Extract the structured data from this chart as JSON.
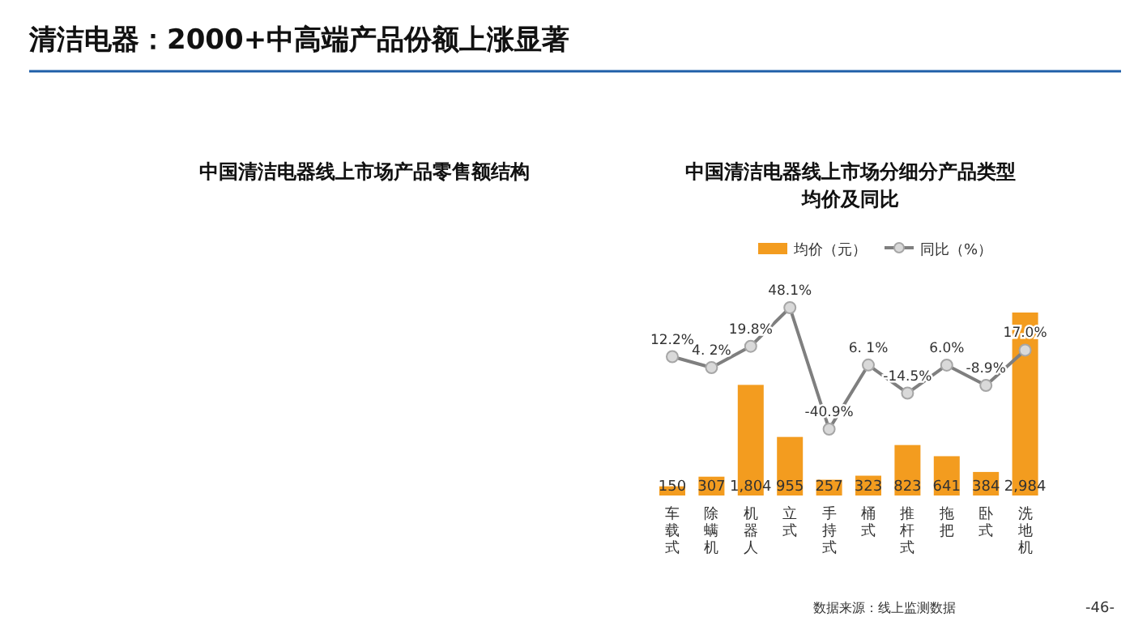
{
  "chart_data": {
    "type": "bar",
    "title": "清洁电器：2000+中高端产品份额上涨显著",
    "subtitle": "中国清洁电器线上市场分细分产品类型均价及同比",
    "categories": [
      "车载式",
      "除螨机",
      "机器人",
      "立式",
      "手持式",
      "桶式",
      "推杆式",
      "拖把",
      "卧式",
      "洗地机"
    ],
    "series": [
      {
        "name": "均价（元）",
        "color": "#f39c1f",
        "values": [
          150,
          307,
          1804,
          955,
          257,
          323,
          823,
          641,
          384,
          2984
        ],
        "value_labels": [
          "150",
          "307",
          "1,804",
          "955",
          "257",
          "323",
          "823",
          "641",
          "384",
          "2,984"
        ]
      },
      {
        "name": "同比（%）",
        "type": "line",
        "axis": "y2",
        "color": "#7f7f7f",
        "values": [
          12.2,
          4.2,
          19.8,
          48.1,
          -40.9,
          6.1,
          -14.5,
          6.0,
          -8.9,
          17.0
        ],
        "value_labels": [
          "12.2%",
          "4. 2%",
          "19.8%",
          "48.1%",
          "-40.9%",
          "6. 1%",
          "-14.5%",
          "6.0%",
          "-8.9%",
          "17.0%"
        ]
      }
    ],
    "marker": "circle",
    "legend": "top",
    "annotations": [
      "中国清洁电器线上市场产品零售额结构",
      "数据来源：线上监测数据",
      "-46-"
    ]
  }
}
